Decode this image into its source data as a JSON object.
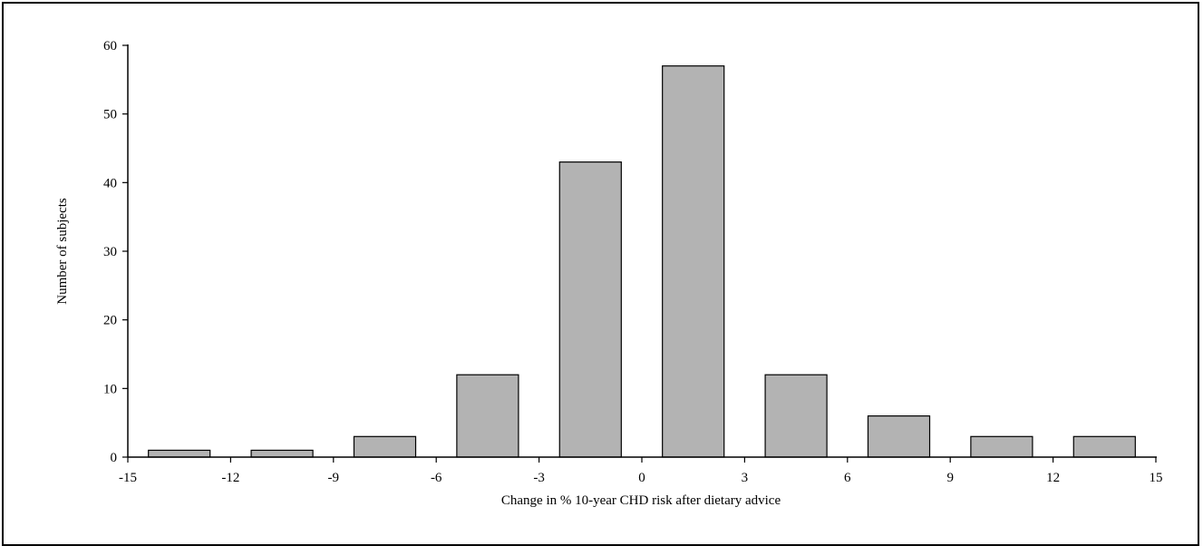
{
  "chart_data": {
    "type": "bar",
    "title": "",
    "xlabel": "Change in % 10-year CHD risk after dietary advice",
    "ylabel": "Number of subjects",
    "xlim": [
      -15,
      15
    ],
    "ylim": [
      0,
      60
    ],
    "xticks": [
      "-15",
      "-12",
      "-9",
      "-6",
      "-3",
      "0",
      "3",
      "6",
      "9",
      "12",
      "15"
    ],
    "yticks": [
      "0",
      "10",
      "20",
      "30",
      "40",
      "50",
      "60"
    ],
    "bins": [
      {
        "from": -15,
        "to": -12,
        "value": 1
      },
      {
        "from": -12,
        "to": -9,
        "value": 1
      },
      {
        "from": -9,
        "to": -6,
        "value": 3
      },
      {
        "from": -6,
        "to": -3,
        "value": 12
      },
      {
        "from": -3,
        "to": 0,
        "value": 43
      },
      {
        "from": 0,
        "to": 3,
        "value": 57
      },
      {
        "from": 3,
        "to": 6,
        "value": 12
      },
      {
        "from": 6,
        "to": 9,
        "value": 6
      },
      {
        "from": 9,
        "to": 12,
        "value": 3
      },
      {
        "from": 12,
        "to": 15,
        "value": 3
      }
    ],
    "bar_color": "#b3b3b3",
    "grid": false,
    "legend": "none"
  }
}
